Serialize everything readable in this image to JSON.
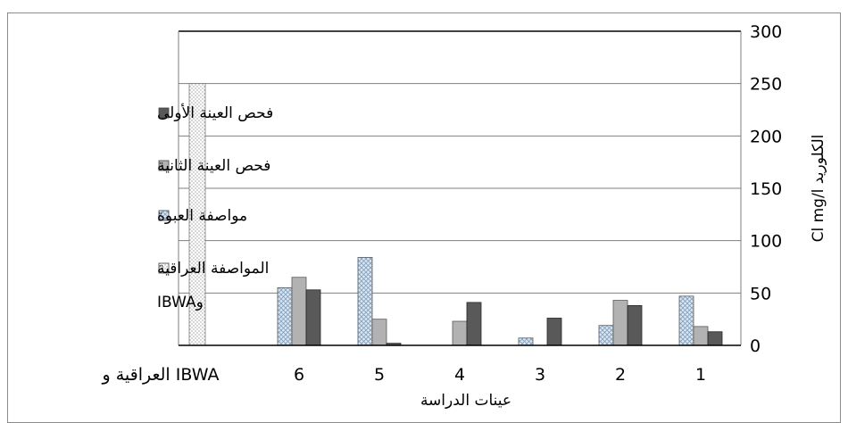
{
  "chart_data": {
    "type": "bar",
    "categories": [
      "1",
      "2",
      "3",
      "4",
      "5",
      "6",
      "IBWA العراقية و"
    ],
    "series": [
      {
        "name": "مواصفة العبوة",
        "values": [
          47,
          19,
          7,
          0,
          84,
          55,
          0
        ],
        "color": "#c8d8e8",
        "pattern": "crosshatch"
      },
      {
        "name": "فحص العينة الثانية",
        "values": [
          18,
          43,
          0,
          23,
          25,
          65,
          0
        ],
        "color": "#b2b2b2",
        "pattern": "solid"
      },
      {
        "name": "فحص العينة الأولى",
        "values": [
          13,
          38,
          26,
          41,
          2,
          53,
          0
        ],
        "color": "#595959",
        "pattern": "solid"
      },
      {
        "name": "المواصفة العراقية وIBWA",
        "values": [
          0,
          0,
          0,
          0,
          0,
          0,
          250
        ],
        "color": "#ffffff",
        "pattern": "dots"
      }
    ],
    "legend_order": [
      "فحص العينة الأولى",
      "فحص العينة الثانية",
      "مواصفة العبوة",
      "المواصفة العراقية وIBWA"
    ],
    "xlabel": "عينات الدراسة",
    "ylabel": "الكلوريد Cl mg/l",
    "ylim": [
      0,
      300
    ],
    "yticks": [
      0,
      50,
      100,
      150,
      200,
      250,
      300
    ],
    "y_axis_side": "right",
    "x_direction": "right-to-left",
    "grid": true,
    "legend_position": "left"
  }
}
